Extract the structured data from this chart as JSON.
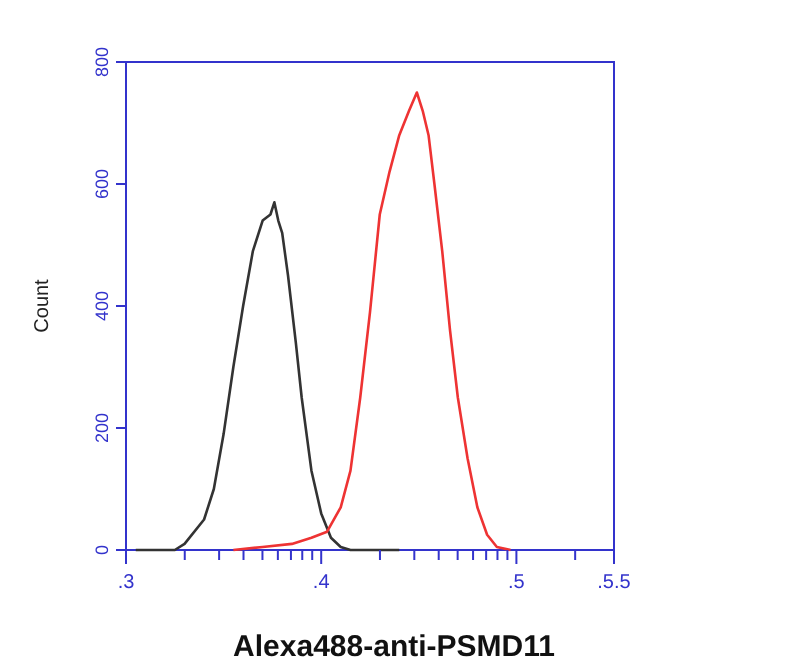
{
  "chart_data": {
    "type": "line",
    "xlabel": "Alexa488-anti-PSMD11",
    "ylabel": "Count",
    "xlim": [
      0.3,
      0.55
    ],
    "ylim": [
      0,
      800
    ],
    "xticks": [
      {
        "value": 0.3,
        "label": ".3"
      },
      {
        "value": 0.3301,
        "label": null
      },
      {
        "value": 0.3477,
        "label": null
      },
      {
        "value": 0.3602,
        "label": null
      },
      {
        "value": 0.3699,
        "label": null
      },
      {
        "value": 0.3778,
        "label": null
      },
      {
        "value": 0.3845,
        "label": null
      },
      {
        "value": 0.3903,
        "label": null
      },
      {
        "value": 0.3954,
        "label": null
      },
      {
        "value": 0.4,
        "label": ".4"
      },
      {
        "value": 0.4301,
        "label": null
      },
      {
        "value": 0.4477,
        "label": null
      },
      {
        "value": 0.4602,
        "label": null
      },
      {
        "value": 0.4699,
        "label": null
      },
      {
        "value": 0.4778,
        "label": null
      },
      {
        "value": 0.4845,
        "label": null
      },
      {
        "value": 0.4903,
        "label": null
      },
      {
        "value": 0.4954,
        "label": null
      },
      {
        "value": 0.5,
        "label": ".5"
      },
      {
        "value": 0.5301,
        "label": null
      },
      {
        "value": 0.55,
        "label": ".5.5"
      }
    ],
    "yticks": [
      0,
      200,
      400,
      600,
      800
    ],
    "series": [
      {
        "color": "#333333",
        "x": [
          0.305,
          0.325,
          0.33,
          0.34,
          0.345,
          0.35,
          0.355,
          0.36,
          0.365,
          0.37,
          0.374,
          0.376,
          0.378,
          0.38,
          0.383,
          0.387,
          0.39,
          0.395,
          0.4,
          0.405,
          0.41,
          0.415,
          0.44
        ],
        "values": [
          0,
          0,
          10,
          50,
          100,
          190,
          300,
          400,
          490,
          540,
          550,
          570,
          540,
          520,
          450,
          340,
          250,
          130,
          60,
          20,
          5,
          0,
          0
        ]
      },
      {
        "color": "#ee3333",
        "x": [
          0.355,
          0.37,
          0.385,
          0.395,
          0.403,
          0.41,
          0.415,
          0.42,
          0.425,
          0.43,
          0.435,
          0.44,
          0.445,
          0.449,
          0.452,
          0.455,
          0.458,
          0.462,
          0.466,
          0.47,
          0.475,
          0.48,
          0.485,
          0.49,
          0.497
        ],
        "values": [
          0,
          5,
          10,
          20,
          30,
          70,
          130,
          250,
          390,
          550,
          620,
          680,
          720,
          750,
          720,
          680,
          600,
          490,
          360,
          250,
          150,
          70,
          25,
          5,
          0
        ]
      }
    ]
  }
}
